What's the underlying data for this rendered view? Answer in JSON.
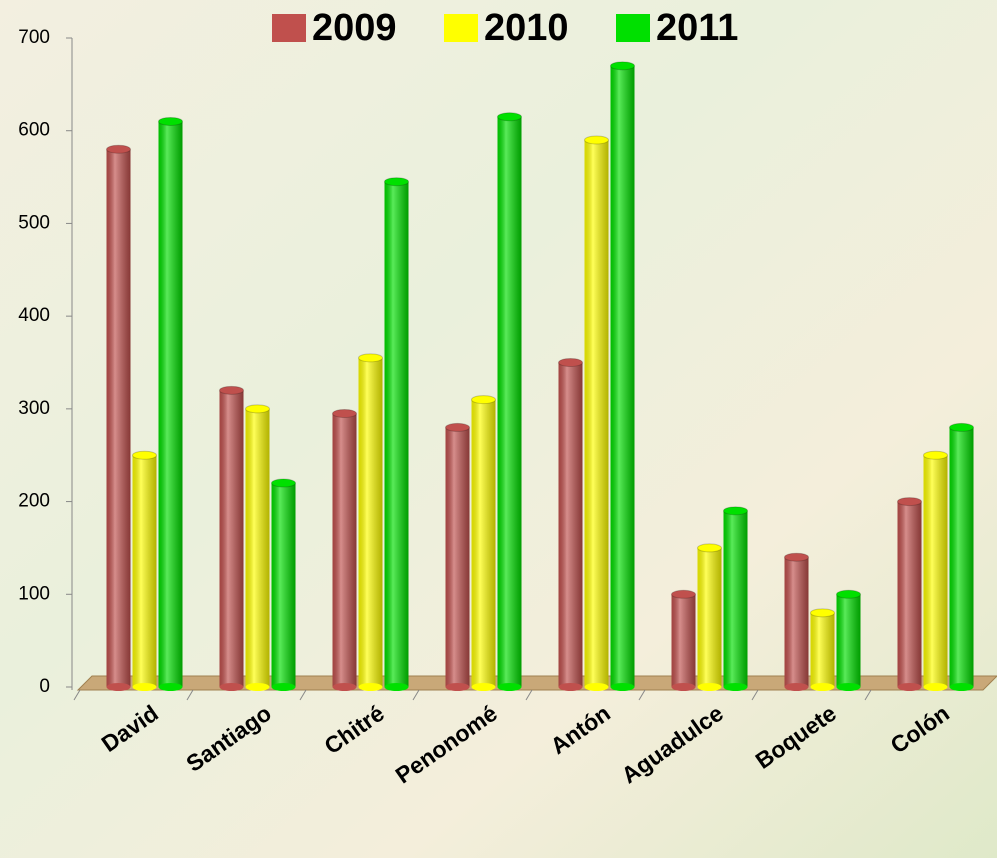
{
  "chart_data": {
    "type": "bar3d",
    "categories": [
      "David",
      "Santiago",
      "Chitré",
      "Penonomé",
      "Antón",
      "Aguadulce",
      "Boquete",
      "Colón"
    ],
    "series": [
      {
        "name": "2009",
        "color": "#c0504d",
        "values": [
          580,
          320,
          295,
          280,
          350,
          100,
          140,
          200
        ]
      },
      {
        "name": "2010",
        "color": "#ffff00",
        "values": [
          250,
          300,
          355,
          310,
          590,
          150,
          80,
          250
        ]
      },
      {
        "name": "2011",
        "color": "#00e000",
        "values": [
          610,
          220,
          545,
          615,
          670,
          190,
          100,
          280
        ]
      }
    ],
    "ylim": [
      0,
      700
    ],
    "yticks": [
      0,
      100,
      200,
      300,
      400,
      500,
      600,
      700
    ],
    "legend": "top"
  }
}
